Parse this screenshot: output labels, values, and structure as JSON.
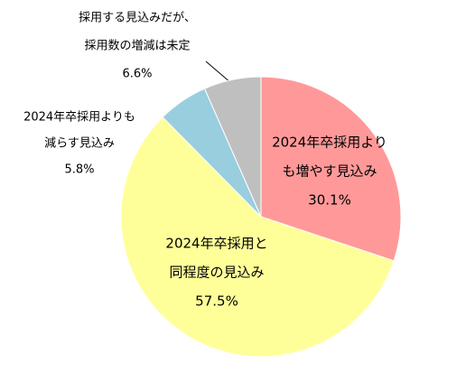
{
  "chart_data": {
    "type": "pie",
    "categories": [
      [
        "2024年卒採用より",
        "も増やす見込み"
      ],
      [
        "2024年卒採用と",
        "同程度の見込み"
      ],
      [
        "2024年卒採用よりも",
        "減らす見込み"
      ],
      [
        "採用する見込みだが、",
        "採用数の増減は未定"
      ]
    ],
    "values": [
      30.1,
      57.5,
      5.8,
      6.6
    ],
    "value_labels": [
      "30.1%",
      "57.5%",
      "5.8%",
      "6.6%"
    ],
    "colors": [
      "#ff9999",
      "#ffff99",
      "#99cedf",
      "#bfbfbf"
    ]
  }
}
